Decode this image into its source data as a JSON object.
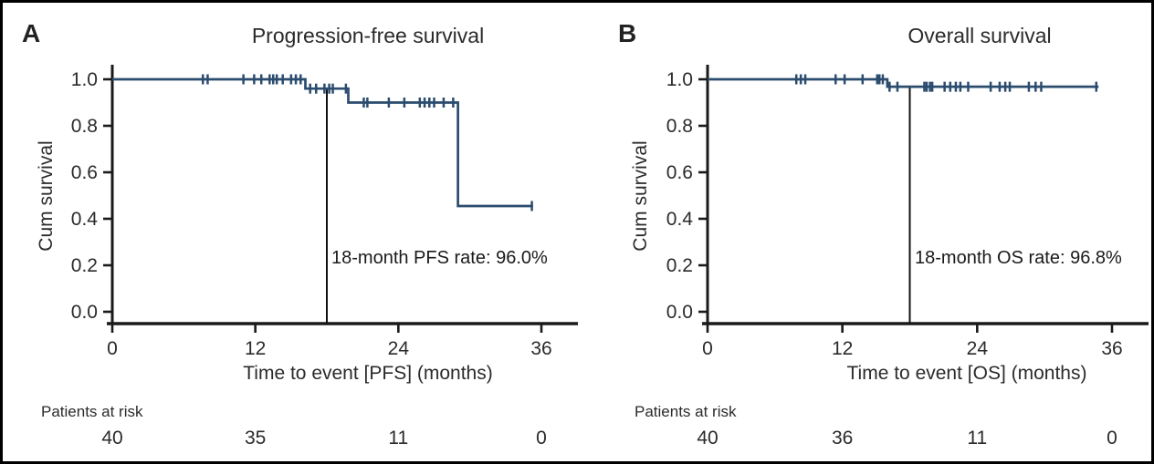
{
  "figure": {
    "kind": "kaplan-meier-two-panel"
  },
  "colors": {
    "line": "#2b4c6f",
    "axis": "#1a1a1a",
    "reference_line": "#111111",
    "text": "#2b2b2b",
    "background": "#ffffff",
    "border": "#000000"
  },
  "chart_data": [
    {
      "id": "pfs",
      "type": "line",
      "subtype": "kaplan-meier-step",
      "panel_label": "A",
      "title": "Progression-free survival",
      "xlabel": "Time to event [PFS] (months)",
      "ylabel": "Cum survival",
      "xlim": [
        0,
        36
      ],
      "ylim": [
        0.0,
        1.0
      ],
      "x_ticks": [
        "0",
        "12",
        "24",
        "36"
      ],
      "y_ticks": [
        "1.0",
        "0.8",
        "0.6",
        "0.4",
        "0.2",
        "0.0"
      ],
      "grid": false,
      "legend": "none",
      "steps": [
        [
          0,
          1.0
        ],
        [
          16.2,
          0.96
        ],
        [
          19.8,
          0.9
        ],
        [
          29.0,
          0.455
        ]
      ],
      "curve_end_month": 35.3,
      "censors": [
        [
          7.6,
          1.0
        ],
        [
          8.0,
          1.0
        ],
        [
          11.0,
          1.0
        ],
        [
          11.9,
          1.0
        ],
        [
          12.5,
          1.0
        ],
        [
          13.2,
          1.0
        ],
        [
          13.5,
          1.0
        ],
        [
          13.8,
          1.0
        ],
        [
          14.3,
          1.0
        ],
        [
          15.0,
          1.0
        ],
        [
          15.4,
          1.0
        ],
        [
          15.8,
          1.0
        ],
        [
          16.6,
          0.96
        ],
        [
          17.1,
          0.96
        ],
        [
          17.8,
          0.96
        ],
        [
          18.2,
          0.96
        ],
        [
          18.5,
          0.96
        ],
        [
          19.6,
          0.96
        ],
        [
          21.1,
          0.9
        ],
        [
          21.4,
          0.9
        ],
        [
          23.2,
          0.9
        ],
        [
          24.5,
          0.9
        ],
        [
          25.8,
          0.9
        ],
        [
          26.2,
          0.9
        ],
        [
          26.6,
          0.9
        ],
        [
          27.0,
          0.9
        ],
        [
          27.8,
          0.9
        ],
        [
          28.6,
          0.9
        ],
        [
          35.2,
          0.455
        ]
      ],
      "annotation": {
        "text": "18-month PFS rate: 96.0%",
        "ref_month": 18
      },
      "patients_at_risk": {
        "label": "Patients at risk",
        "times": [
          0,
          12,
          24,
          36
        ],
        "values": [
          "40",
          "35",
          "11",
          "0"
        ]
      }
    },
    {
      "id": "os",
      "type": "line",
      "subtype": "kaplan-meier-step",
      "panel_label": "B",
      "title": "Overall survival",
      "xlabel": "Time to event [OS] (months)",
      "ylabel": "Cum survival",
      "xlim": [
        0,
        36
      ],
      "ylim": [
        0.0,
        1.0
      ],
      "x_ticks": [
        "0",
        "12",
        "24",
        "36"
      ],
      "y_ticks": [
        "1.0",
        "0.8",
        "0.6",
        "0.4",
        "0.2",
        "0.0"
      ],
      "grid": false,
      "legend": "none",
      "steps": [
        [
          0,
          1.0
        ],
        [
          16.0,
          0.968
        ]
      ],
      "curve_end_month": 34.8,
      "censors": [
        [
          7.9,
          1.0
        ],
        [
          8.3,
          1.0
        ],
        [
          8.7,
          1.0
        ],
        [
          11.4,
          1.0
        ],
        [
          12.2,
          1.0
        ],
        [
          13.8,
          1.0
        ],
        [
          15.1,
          1.0
        ],
        [
          15.3,
          1.0
        ],
        [
          15.6,
          1.0
        ],
        [
          16.2,
          0.968
        ],
        [
          16.9,
          0.968
        ],
        [
          19.3,
          0.968
        ],
        [
          19.5,
          0.968
        ],
        [
          19.8,
          0.968
        ],
        [
          20.0,
          0.968
        ],
        [
          21.1,
          0.968
        ],
        [
          21.6,
          0.968
        ],
        [
          22.1,
          0.968
        ],
        [
          22.5,
          0.968
        ],
        [
          23.2,
          0.968
        ],
        [
          25.2,
          0.968
        ],
        [
          26.0,
          0.968
        ],
        [
          26.5,
          0.968
        ],
        [
          26.9,
          0.968
        ],
        [
          28.6,
          0.968
        ],
        [
          29.2,
          0.968
        ],
        [
          29.7,
          0.968
        ],
        [
          34.6,
          0.968
        ]
      ],
      "annotation": {
        "text": "18-month OS rate: 96.8%",
        "ref_month": 18
      },
      "patients_at_risk": {
        "label": "Patients at risk",
        "times": [
          0,
          12,
          24,
          36
        ],
        "values": [
          "40",
          "36",
          "11",
          "0"
        ]
      }
    }
  ]
}
